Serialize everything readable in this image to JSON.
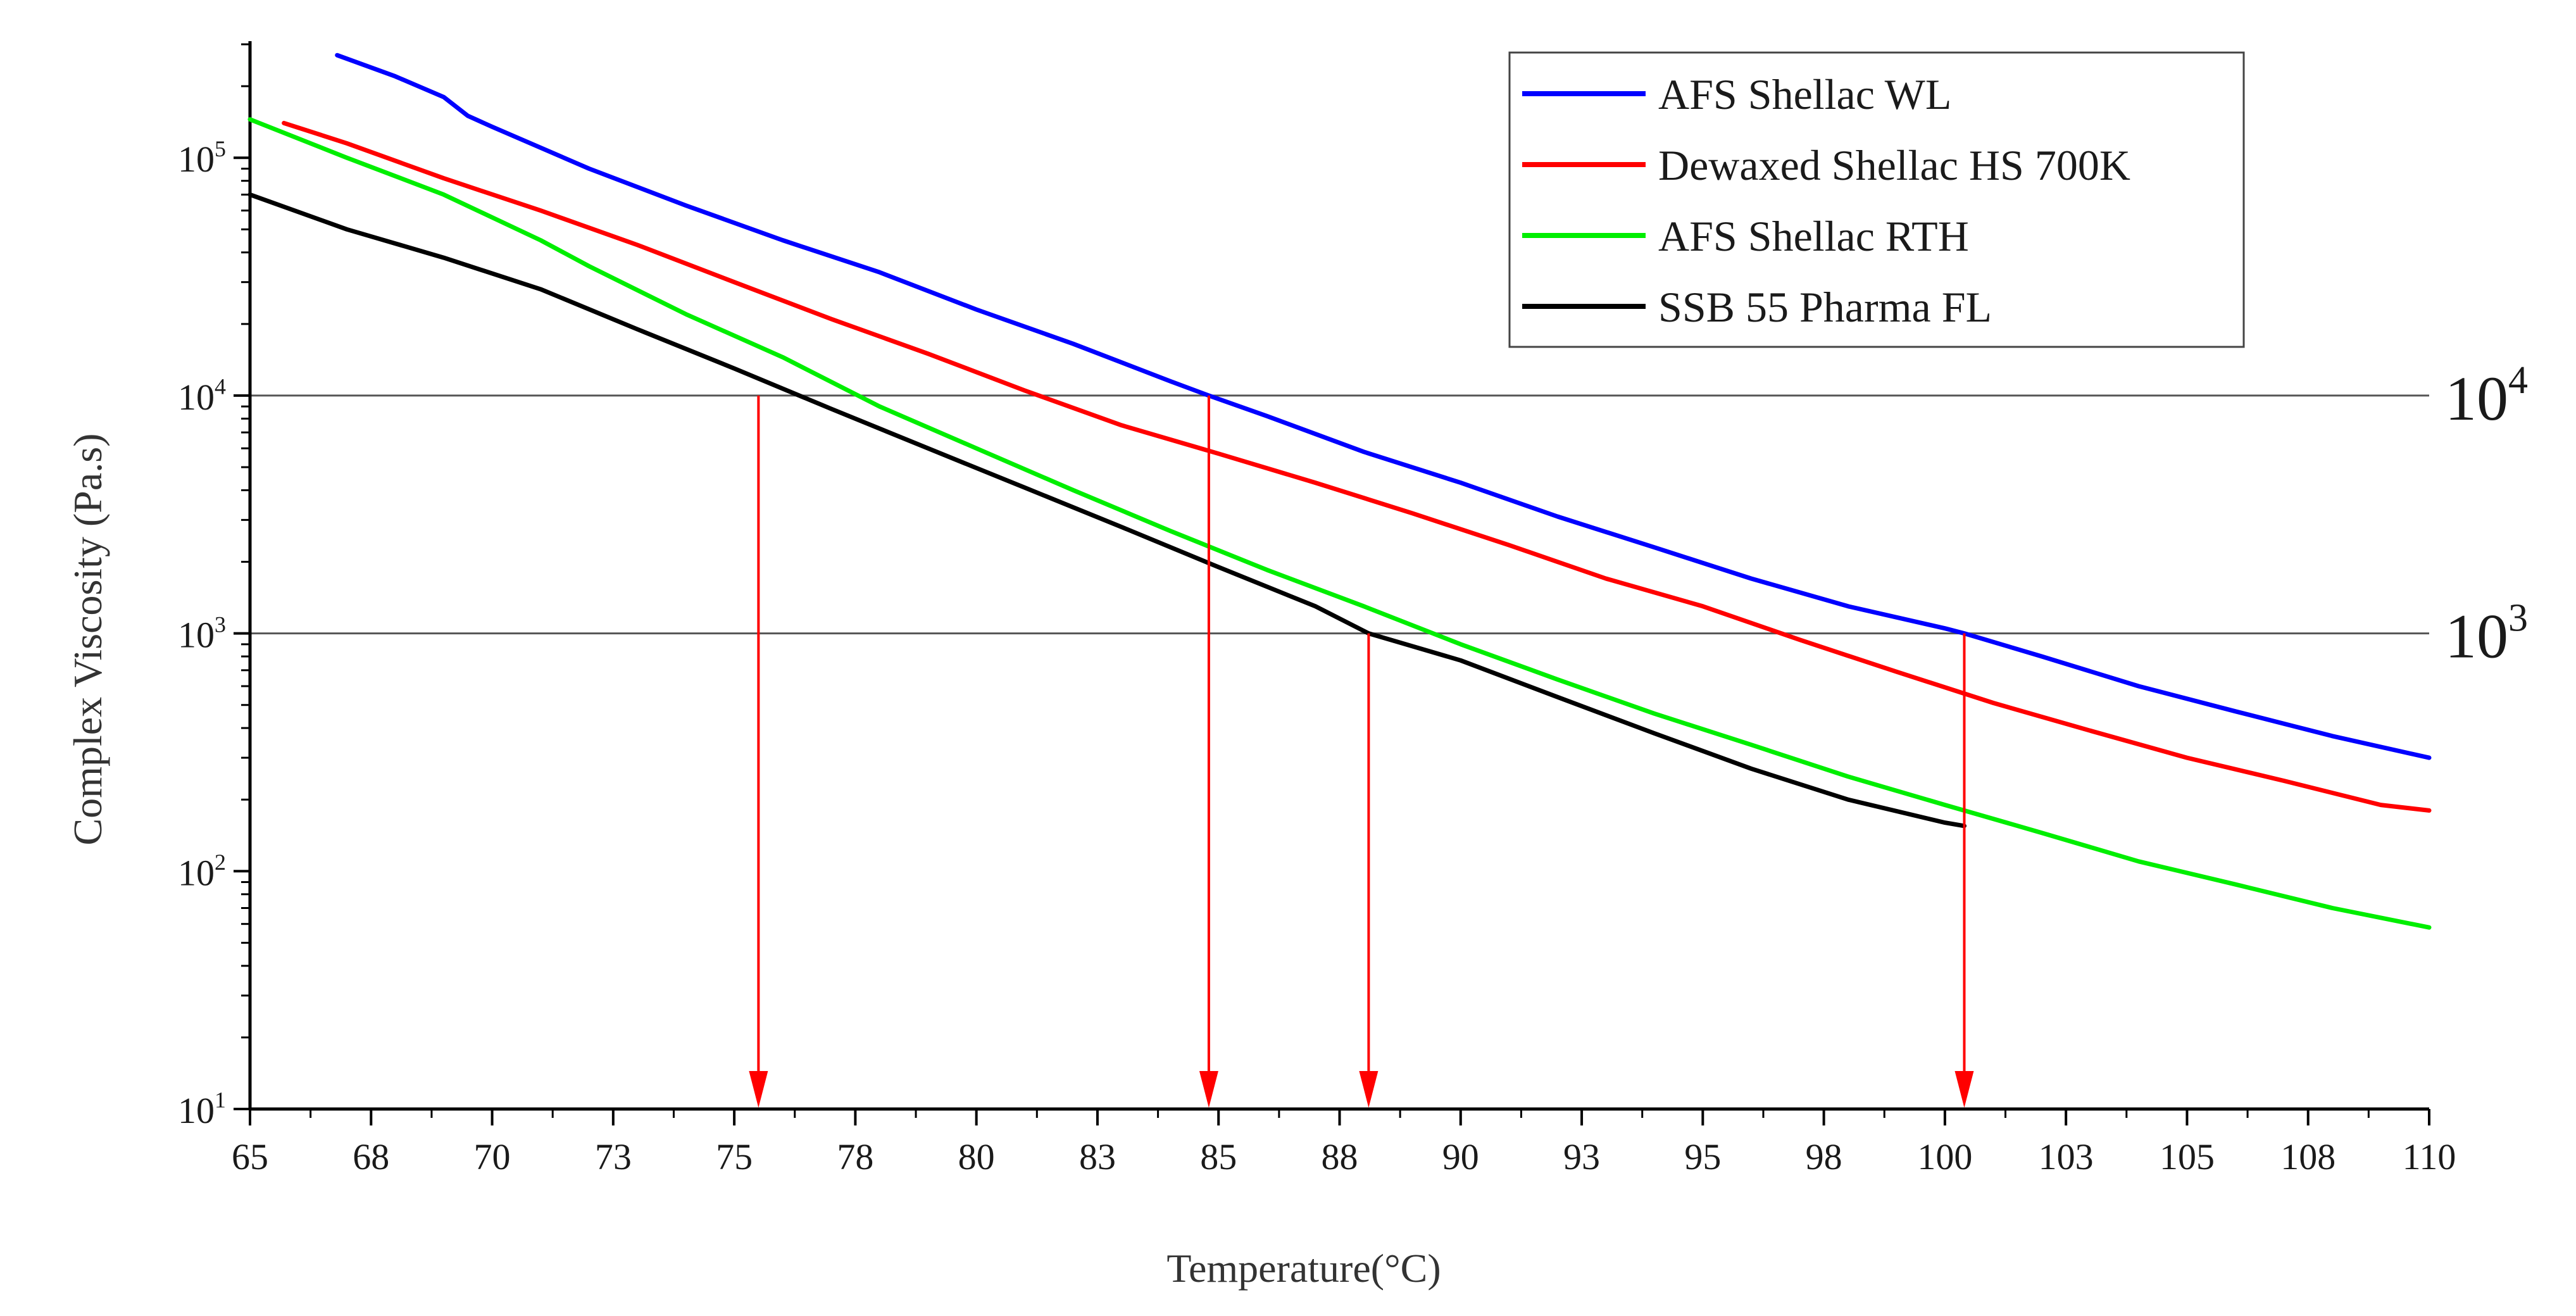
{
  "chart_data": {
    "type": "line",
    "title": "",
    "xlabel": "Temperature(°C)",
    "ylabel": "Complex Viscosity (Pa.s)",
    "xlim": [
      65,
      110
    ],
    "ylim": [
      10,
      300000
    ],
    "yscale": "log",
    "x_ticks": [
      65,
      67.5,
      70,
      72.5,
      75,
      77.5,
      80,
      82.5,
      85,
      87.5,
      90,
      92.5,
      95,
      97.5,
      100,
      102.5,
      105,
      107.5,
      110
    ],
    "x_tick_labels": [
      "65",
      "68",
      "70",
      "73",
      "75",
      "78",
      "80",
      "83",
      "85",
      "88",
      "90",
      "93",
      "95",
      "98",
      "100",
      "103",
      "105",
      "108",
      "110"
    ],
    "y_ticks": [
      {
        "value": 10,
        "base": "10",
        "exp": "1"
      },
      {
        "value": 100,
        "base": "10",
        "exp": "2"
      },
      {
        "value": 1000,
        "base": "10",
        "exp": "3"
      },
      {
        "value": 10000,
        "base": "10",
        "exp": "4"
      },
      {
        "value": 100000,
        "base": "10",
        "exp": "5"
      }
    ],
    "reference_lines": [
      {
        "value": 10000,
        "base": "10",
        "exp": "4"
      },
      {
        "value": 1000,
        "base": "10",
        "exp": "3"
      }
    ],
    "drop_arrows_x": [
      75.5,
      84.8,
      88.1,
      100.4
    ],
    "legend_position": "top-right",
    "series": [
      {
        "name": "AFS Shellac WL",
        "color": "#0000ff",
        "x": [
          66.8,
          68,
          69,
          69.5,
          70,
          72,
          74,
          76,
          78,
          80,
          82,
          84,
          84.8,
          86,
          88,
          90,
          92,
          94,
          96,
          98,
          100,
          100.4,
          102,
          104,
          106,
          108,
          110
        ],
        "y": [
          270000,
          220000,
          180000,
          150000,
          135000,
          90000,
          63000,
          45000,
          33000,
          23000,
          16500,
          11500,
          10000,
          8200,
          5800,
          4300,
          3100,
          2300,
          1700,
          1300,
          1050,
          1000,
          800,
          600,
          470,
          370,
          300
        ]
      },
      {
        "name": "Dewaxed Shellac HS 700K",
        "color": "#ff0000",
        "x": [
          65.7,
          67,
          69,
          71,
          73,
          75,
          77,
          79,
          81,
          83,
          85,
          87,
          89,
          91,
          93,
          95,
          97,
          99,
          101,
          103,
          105,
          107,
          109,
          110
        ],
        "y": [
          140000,
          115000,
          82000,
          60000,
          43000,
          30000,
          21000,
          15000,
          10500,
          7500,
          5700,
          4300,
          3200,
          2350,
          1700,
          1300,
          940,
          690,
          510,
          390,
          300,
          240,
          190,
          180
        ]
      },
      {
        "name": "AFS Shellac RTH",
        "color": "#00ee00",
        "x": [
          65,
          67,
          69,
          71,
          72,
          74,
          76,
          78,
          80,
          82,
          84,
          86,
          88,
          90,
          92,
          94,
          96,
          98,
          100,
          102,
          104,
          106,
          108,
          110
        ],
        "y": [
          145000,
          100000,
          70000,
          45000,
          35000,
          22000,
          14500,
          9000,
          6000,
          4000,
          2700,
          1850,
          1300,
          900,
          640,
          460,
          340,
          250,
          190,
          145,
          110,
          88,
          70,
          58
        ]
      },
      {
        "name": "SSB 55 Pharma FL",
        "color": "#000000",
        "x": [
          65,
          67,
          69,
          71,
          73,
          75,
          77,
          79,
          81,
          83,
          85,
          87,
          88.1,
          90,
          92,
          94,
          96,
          98,
          100,
          100.4
        ],
        "y": [
          70000,
          50000,
          38000,
          28000,
          19000,
          13000,
          8800,
          6000,
          4100,
          2800,
          1900,
          1300,
          1000,
          770,
          540,
          380,
          270,
          200,
          160,
          155
        ]
      }
    ]
  }
}
